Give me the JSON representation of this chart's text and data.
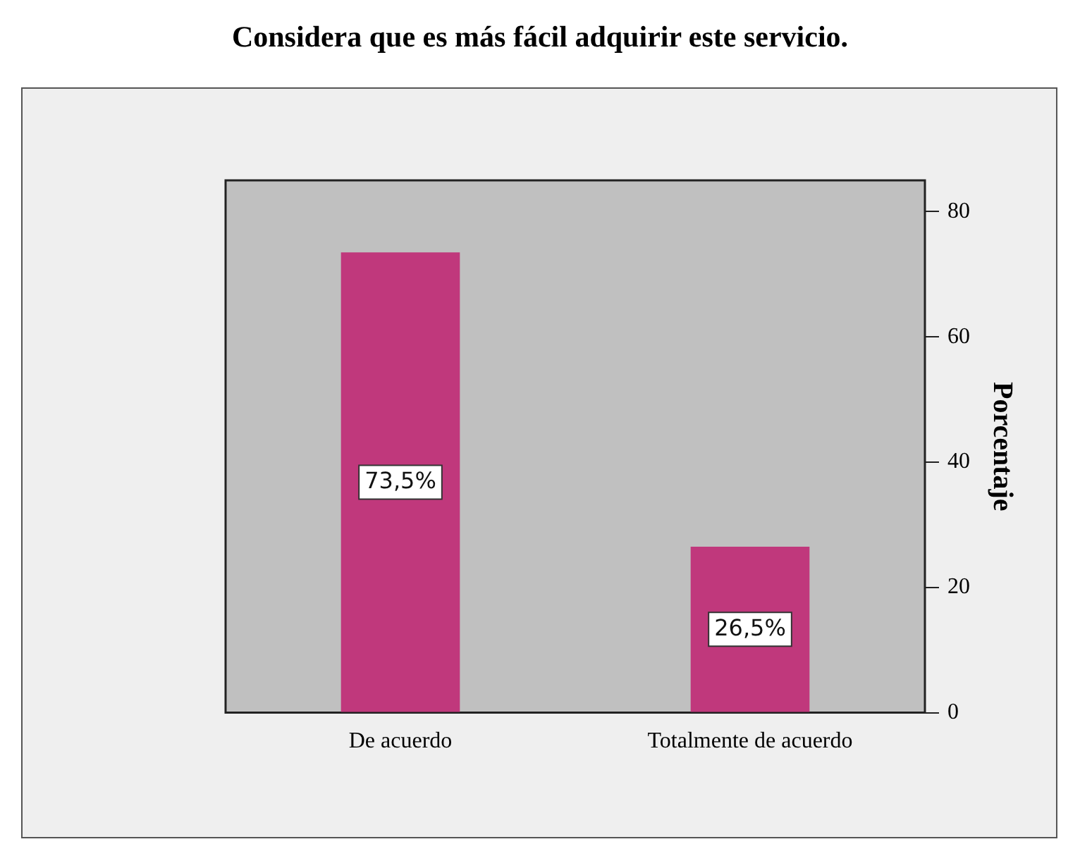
{
  "chart_data": {
    "type": "bar",
    "title": "Considera que es más fácil adquirir este servicio.",
    "ylabel": "Porcentaje",
    "categories": [
      "De acuerdo",
      "Totalmente de acuerdo"
    ],
    "values": [
      73.5,
      26.5
    ],
    "color": "#c0387c",
    "value_labels": [
      "73,5%",
      "26,5%"
    ],
    "ylim": [
      0,
      85
    ],
    "yticks": [
      0,
      20,
      40,
      60,
      80
    ],
    "grid": false,
    "legend": false
  }
}
